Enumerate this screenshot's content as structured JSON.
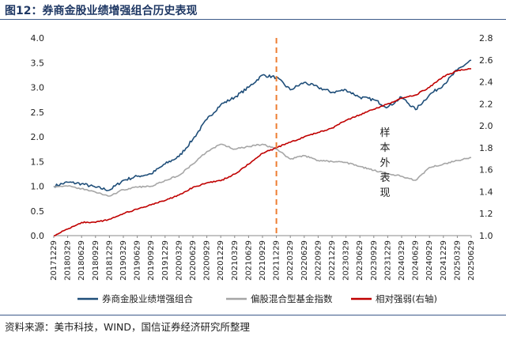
{
  "title": "图12：券商金股业绩增强组合历史表现",
  "source": "资料来源：美市科技，WIND，国信证券经济研究所整理",
  "chart_data": {
    "type": "line",
    "x": [
      "20171229",
      "20180329",
      "20180629",
      "20180929",
      "20181229",
      "20190329",
      "20190629",
      "20190929",
      "20191229",
      "20200329",
      "20200629",
      "20200929",
      "20201229",
      "20210329",
      "20210629",
      "20210929",
      "20211229",
      "20220329",
      "20220629",
      "20220929",
      "20221229",
      "20230329",
      "20230629",
      "20230929",
      "20231229",
      "20240329",
      "20240629",
      "20240929",
      "20241229",
      "20250329",
      "20250629"
    ],
    "ylim_left": [
      0,
      4.0
    ],
    "yticks_left": [
      "0.0",
      "0.5",
      "1.0",
      "1.5",
      "2.0",
      "2.5",
      "3.0",
      "3.5",
      "4.0"
    ],
    "ylim_right": [
      1.0,
      2.8
    ],
    "yticks_right": [
      "1.0",
      "1.2",
      "1.4",
      "1.6",
      "1.8",
      "2.0",
      "2.2",
      "2.4",
      "2.6",
      "2.8"
    ],
    "vline_at": "20211229",
    "vline_color": "#ed7d31",
    "annotation": [
      "样",
      "本",
      "外",
      "表",
      "现"
    ],
    "series": [
      {
        "name": "券商金股业绩增强组合",
        "axis": "left",
        "color": "#1f4e79",
        "values": [
          1.0,
          1.08,
          1.05,
          0.98,
          0.92,
          1.12,
          1.2,
          1.25,
          1.45,
          1.6,
          1.95,
          2.35,
          2.65,
          2.8,
          3.0,
          3.25,
          3.2,
          2.95,
          3.1,
          3.0,
          2.9,
          2.95,
          2.8,
          2.75,
          2.6,
          2.8,
          2.55,
          2.85,
          3.05,
          3.35,
          3.55
        ]
      },
      {
        "name": "偏股混合型基金指数",
        "axis": "left",
        "color": "#a6a6a6",
        "values": [
          1.0,
          1.0,
          0.95,
          0.88,
          0.8,
          0.93,
          0.98,
          1.0,
          1.12,
          1.22,
          1.45,
          1.7,
          1.85,
          1.75,
          1.8,
          1.85,
          1.75,
          1.55,
          1.62,
          1.52,
          1.5,
          1.48,
          1.4,
          1.32,
          1.25,
          1.2,
          1.12,
          1.38,
          1.45,
          1.52,
          1.58
        ]
      },
      {
        "name": "相对强弱(右轴)",
        "axis": "right",
        "color": "#c00000",
        "values": [
          1.0,
          1.06,
          1.12,
          1.12,
          1.15,
          1.2,
          1.24,
          1.28,
          1.32,
          1.37,
          1.44,
          1.48,
          1.5,
          1.56,
          1.65,
          1.75,
          1.8,
          1.85,
          1.9,
          1.94,
          1.98,
          2.05,
          2.1,
          2.15,
          2.2,
          2.25,
          2.28,
          2.35,
          2.45,
          2.5,
          2.52
        ]
      }
    ]
  }
}
